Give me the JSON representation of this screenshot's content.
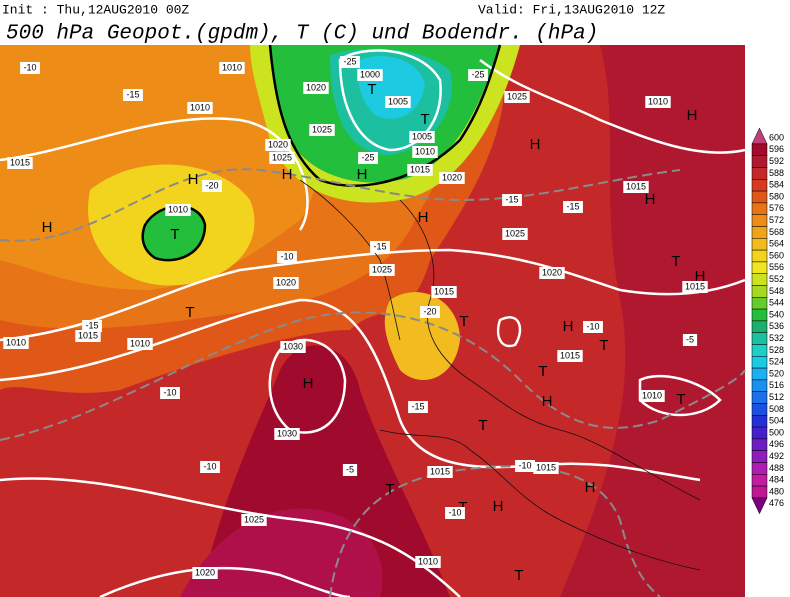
{
  "header": {
    "init": "Init : Thu,12AUG2010 00Z",
    "valid": "Valid: Fri,13AUG2010 12Z",
    "title": "500 hPa Geopot.(gpdm), T (C) und Bodendr. (hPa)"
  },
  "colorbar": {
    "levels": [
      600,
      596,
      592,
      588,
      584,
      580,
      576,
      572,
      568,
      564,
      560,
      556,
      552,
      548,
      544,
      540,
      536,
      532,
      528,
      524,
      520,
      516,
      512,
      508,
      504,
      500,
      496,
      492,
      488,
      484,
      480,
      476
    ],
    "colors": [
      "#c0407e",
      "#a00a2c",
      "#b01830",
      "#c42828",
      "#d63c20",
      "#e05818",
      "#e87418",
      "#ee8c18",
      "#f0a41e",
      "#f2bc20",
      "#f2d41e",
      "#eee620",
      "#cce420",
      "#a6da22",
      "#64cc2c",
      "#22be3c",
      "#1cb070",
      "#1cc0a0",
      "#1cd0c8",
      "#1ccae2",
      "#1cb0f0",
      "#1c90ee",
      "#1c70e8",
      "#1c50e0",
      "#2230d6",
      "#4420cc",
      "#6e1cc4",
      "#901cbc",
      "#ae1cb0",
      "#c21ca2",
      "#c01890",
      "#7a0080"
    ]
  },
  "map_labels": [
    "1010",
    "-10",
    "-15",
    "1010",
    "1015",
    "H",
    "-20",
    "1010",
    "T",
    "H",
    "1020",
    "-25",
    "1000",
    "T",
    "1005",
    "T",
    "1005",
    "1010",
    "-25",
    "H",
    "1025",
    "1020",
    "1025",
    "H",
    "1015",
    "1020",
    "-25",
    "1025",
    "H",
    "1010",
    "H",
    "1015",
    "H",
    "-15",
    "H",
    "1025",
    "-15",
    "1020",
    "-10",
    "-15",
    "1015",
    "1010",
    "1010",
    "T",
    "1030",
    "H",
    "1030",
    "-10",
    "-10",
    "1025",
    "1020",
    "1015",
    "T",
    "T",
    "-15",
    "1020",
    "-10",
    "1015",
    "H",
    "T",
    "T",
    "H",
    "1010",
    "T",
    "H",
    "1015",
    "T",
    "H",
    "-10",
    "1010",
    "T",
    "T",
    "H",
    "1015",
    "-5",
    "-5",
    "-10",
    "1025",
    "-15",
    "1015",
    "-20",
    "T"
  ]
}
